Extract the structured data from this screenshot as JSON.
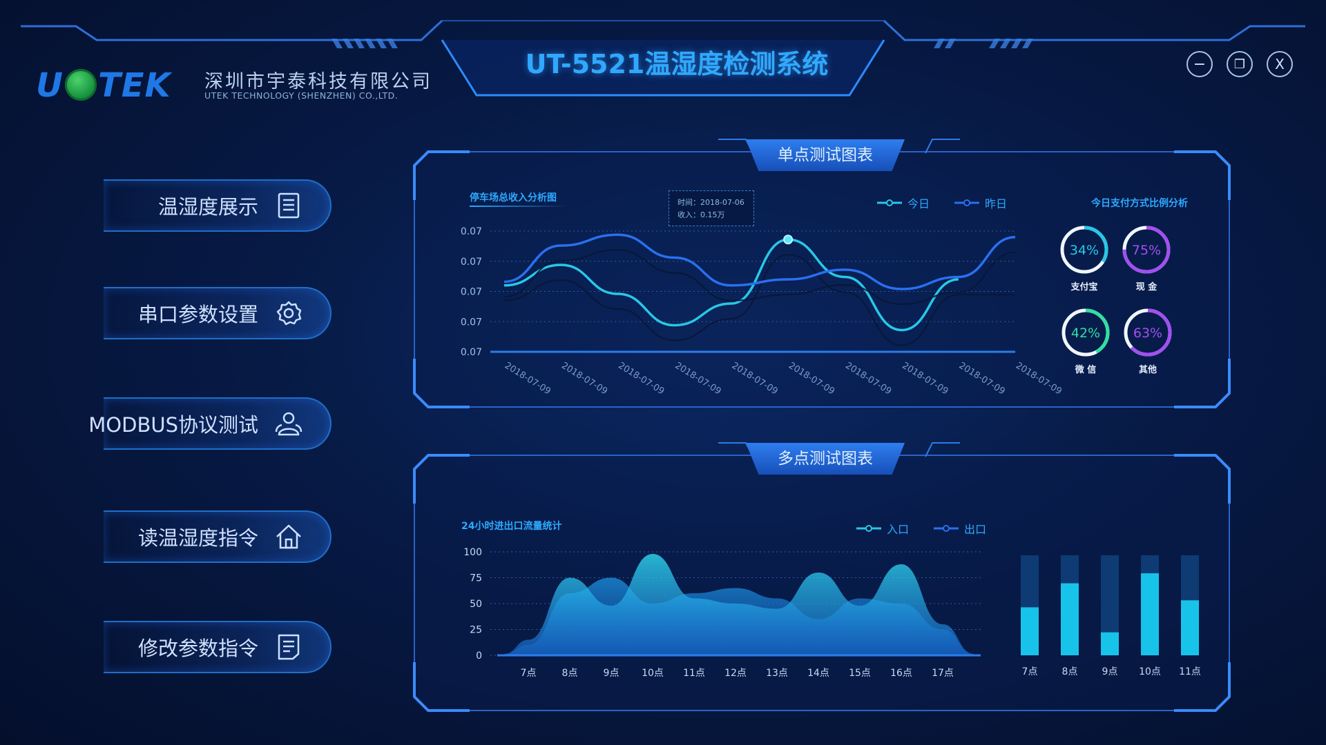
{
  "header": {
    "logo_text_left": "U",
    "logo_text_right": "TEK",
    "company_cn": "深圳市宇泰科技有限公司",
    "company_en": "UTEK TECHNOLOGY (SHENZHEN) CO.,LTD.",
    "app_title": "UT-5521温湿度检测系统",
    "window_controls": [
      {
        "name": "minimize",
        "glyph": "−"
      },
      {
        "name": "restore",
        "glyph": "❐"
      },
      {
        "name": "close",
        "glyph": "X"
      }
    ]
  },
  "sidebar": {
    "items": [
      {
        "label": "温湿度展示",
        "icon": "document-icon"
      },
      {
        "label": "串口参数设置",
        "icon": "gear-icon"
      },
      {
        "label": "MODBUS协议测试",
        "icon": "users-icon"
      },
      {
        "label": "读温湿度指令",
        "icon": "home-icon"
      },
      {
        "label": "修改参数指令",
        "icon": "note-icon"
      }
    ]
  },
  "panel_top": {
    "title": "单点测试图表",
    "line_chart_title": "停车场总收入分析图",
    "tooltip_time": "时间：2018-07-06",
    "tooltip_income": "收入：0.15万",
    "legend": [
      {
        "name": "今日",
        "color": "#27c8e6"
      },
      {
        "name": "昨日",
        "color": "#2a6ff0"
      }
    ],
    "ring_title": "今日支付方式比例分析"
  },
  "panel_bottom": {
    "title": "多点测试图表",
    "area_chart_title": "24小时进出口流量统计",
    "legend": [
      {
        "name": "入口",
        "color": "#27c8e6"
      },
      {
        "name": "出口",
        "color": "#2a6ff0"
      }
    ]
  },
  "colors": {
    "accent": "#2ea9ff",
    "today_line": "#27c8e6",
    "yesterday_line": "#2a6ff0",
    "bar_fill": "#18c3ea",
    "ring_cyan": "#27c8e6",
    "ring_purple": "#a24ff0",
    "ring_green": "#2fe0a0"
  },
  "chart_data": [
    {
      "type": "line",
      "title": "停车场总收入分析图",
      "x": [
        "2018-07-09",
        "2018-07-09",
        "2018-07-09",
        "2018-07-09",
        "2018-07-09",
        "2018-07-09",
        "2018-07-09",
        "2018-07-09",
        "2018-07-09",
        "2018-07-09"
      ],
      "y_ticks": [
        "0.07",
        "0.07",
        "0.07",
        "0.07",
        "0.07"
      ],
      "series": [
        {
          "name": "今日",
          "values": [
            0.55,
            0.72,
            0.48,
            0.22,
            0.4,
            0.93,
            0.62,
            0.18,
            0.6,
            0.6
          ]
        },
        {
          "name": "昨日",
          "values": [
            0.58,
            0.88,
            0.97,
            0.78,
            0.55,
            0.6,
            0.68,
            0.52,
            0.62,
            0.95
          ]
        }
      ],
      "ylabel": "",
      "xlabel": ""
    },
    {
      "type": "pie",
      "title": "今日支付方式比例分析",
      "slices": [
        {
          "label": "支付宝",
          "percent": 34,
          "color": "#27c8e6"
        },
        {
          "label": "现 金",
          "percent": 75,
          "color": "#a24ff0"
        },
        {
          "label": "微 信",
          "percent": 42,
          "color": "#2fe0a0"
        },
        {
          "label": "其他",
          "percent": 63,
          "color": "#a24ff0"
        }
      ]
    },
    {
      "type": "area",
      "title": "24小时进出口流量统计",
      "categories": [
        "7点",
        "8点",
        "9点",
        "10点",
        "11点",
        "12点",
        "13点",
        "14点",
        "15点",
        "16点",
        "17点"
      ],
      "ylim": [
        0,
        100
      ],
      "y_ticks": [
        "100",
        "75",
        "50",
        "25",
        "0"
      ],
      "series": [
        {
          "name": "入口",
          "values": [
            15,
            75,
            48,
            98,
            55,
            50,
            45,
            80,
            48,
            88,
            30
          ]
        },
        {
          "name": "出口",
          "values": [
            10,
            60,
            75,
            50,
            60,
            65,
            55,
            35,
            55,
            50,
            25
          ]
        }
      ]
    },
    {
      "type": "bar",
      "categories": [
        "7点",
        "8点",
        "9点",
        "10点",
        "11点"
      ],
      "values": [
        48,
        72,
        23,
        82,
        55
      ],
      "ylim": [
        0,
        100
      ]
    }
  ]
}
